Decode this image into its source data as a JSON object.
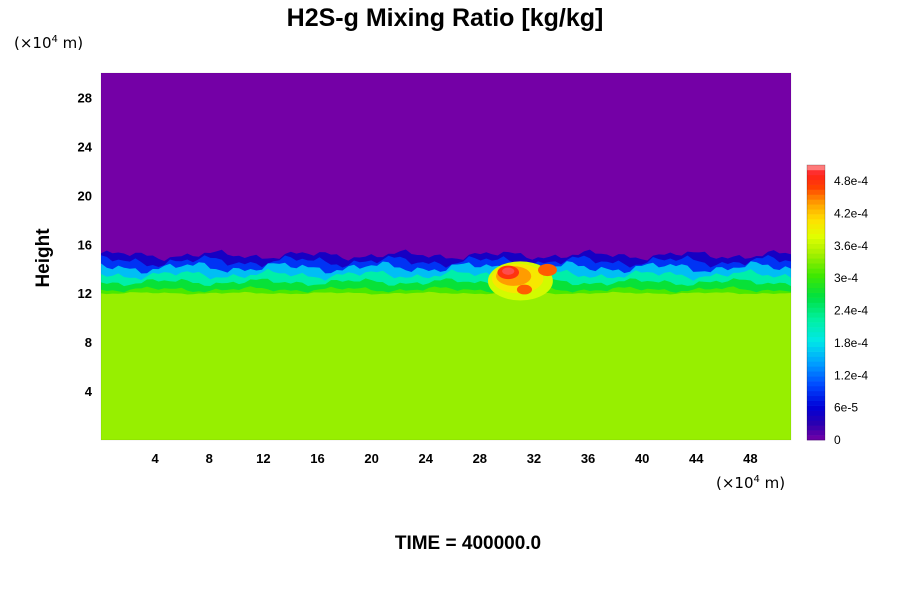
{
  "chart_data": {
    "type": "heatmap",
    "title": "H2S-g Mixing Ratio [kg/kg]",
    "ylabel": "Height",
    "xlabel": "",
    "x_unit_label": "(×10",
    "x_unit_exp": "4",
    "x_unit_tail": " m)",
    "y_unit_label": "(×10",
    "y_unit_exp": "4",
    "y_unit_tail": " m)",
    "xlim": [
      0,
      51
    ],
    "ylim": [
      0,
      30
    ],
    "x_ticks": [
      "4",
      "8",
      "12",
      "16",
      "20",
      "24",
      "28",
      "32",
      "36",
      "40",
      "44",
      "48"
    ],
    "y_ticks": [
      "4",
      "8",
      "12",
      "16",
      "20",
      "24",
      "28"
    ],
    "colorbar": {
      "vmin": 0,
      "vmax": 0.00051,
      "tick_labels": [
        "0",
        "6e-5",
        "1.2e-4",
        "1.8e-4",
        "2.4e-4",
        "3e-4",
        "3.6e-4",
        "4.2e-4",
        "4.8e-4"
      ],
      "tick_values": [
        0,
        6e-05,
        0.00012,
        0.00018,
        0.00024,
        0.0003,
        0.00036,
        0.00042,
        0.00048
      ]
    },
    "field_summary": {
      "lower_layer_top_height": 12,
      "lower_layer_value": 0.00034,
      "upper_layer_value": 0,
      "mixing_layer_top_height": 15,
      "plume_peak_value": 0.0005,
      "plume_x_range": [
        29,
        33
      ]
    },
    "footer": "TIME = 400000.0"
  }
}
